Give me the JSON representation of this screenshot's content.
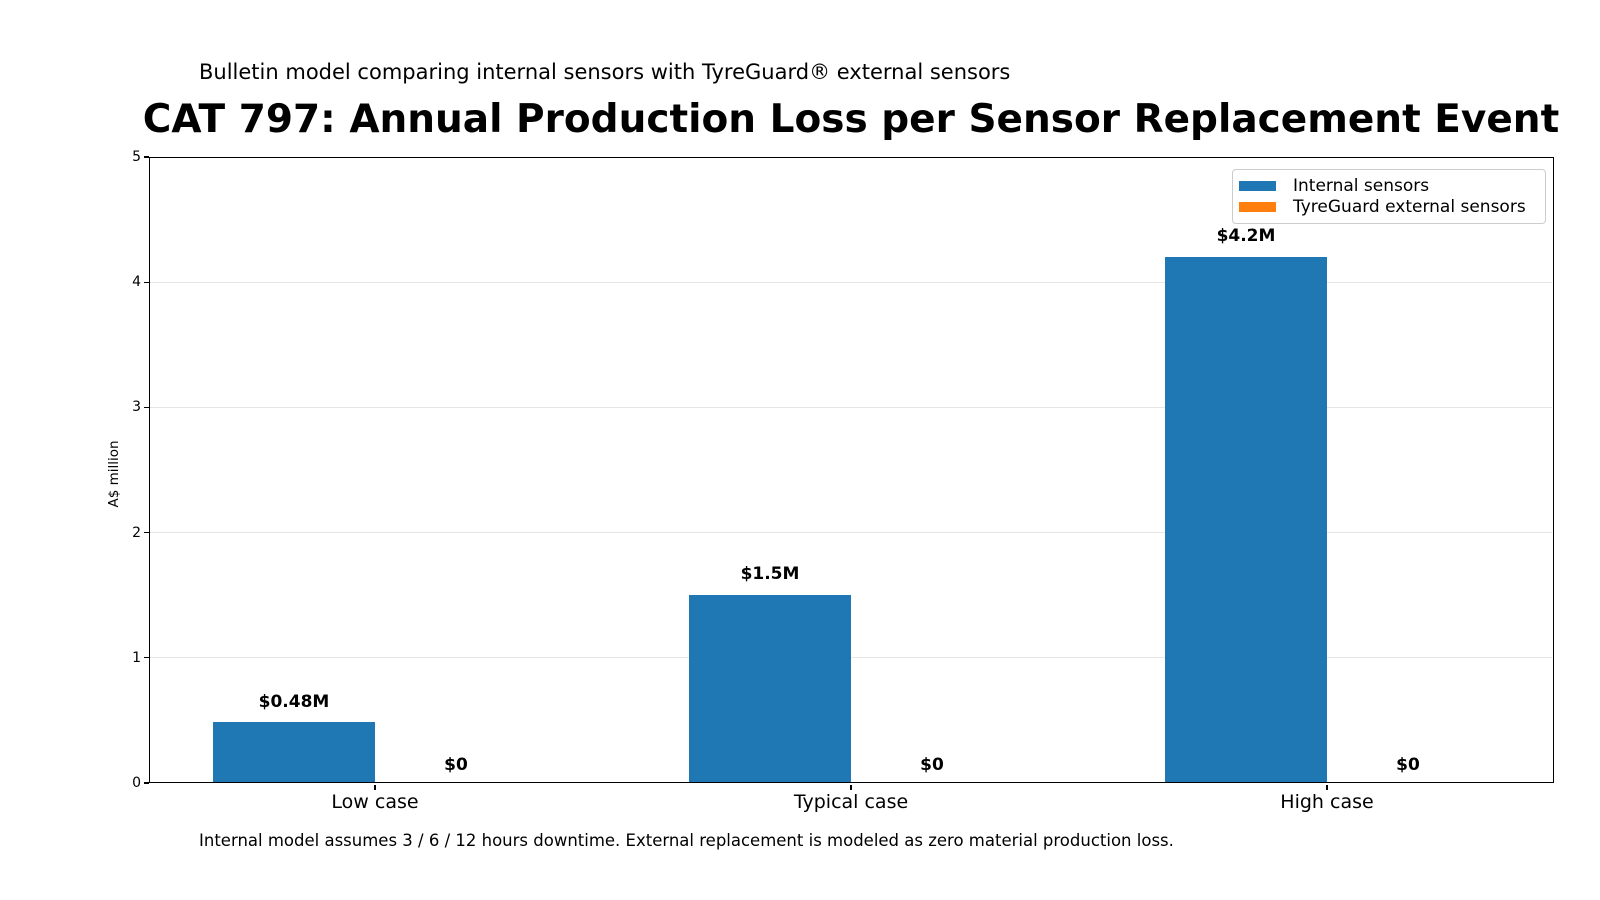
{
  "chart_data": {
    "type": "bar",
    "title": "CAT 797: Annual Production Loss per Sensor Replacement Event",
    "subtitle": "Bulletin model comparing internal sensors with TyreGuard® external sensors",
    "footnote": "Internal model assumes 3 / 6 / 12 hours downtime. External replacement is modeled as zero material production loss.",
    "ylabel": "A$ million",
    "categories": [
      "Low case",
      "Typical case",
      "High case"
    ],
    "series": [
      {
        "name": "Internal sensors",
        "color": "#1f77b4",
        "values": [
          0.48,
          1.5,
          4.2
        ],
        "labels": [
          "$0.48M",
          "$1.5M",
          "$4.2M"
        ]
      },
      {
        "name": "TyreGuard external sensors",
        "color": "#ff7f0e",
        "values": [
          0,
          0,
          0
        ],
        "labels": [
          "$0",
          "$0",
          "$0"
        ]
      }
    ],
    "ylim": [
      0,
      5
    ],
    "yticks": [
      0,
      1,
      2,
      3,
      4,
      5
    ],
    "grid": true,
    "legend_position": "upper right",
    "colors": {
      "grid": "#e6e6e6",
      "spine": "#000000",
      "text": "#000000",
      "background": "#ffffff"
    }
  }
}
